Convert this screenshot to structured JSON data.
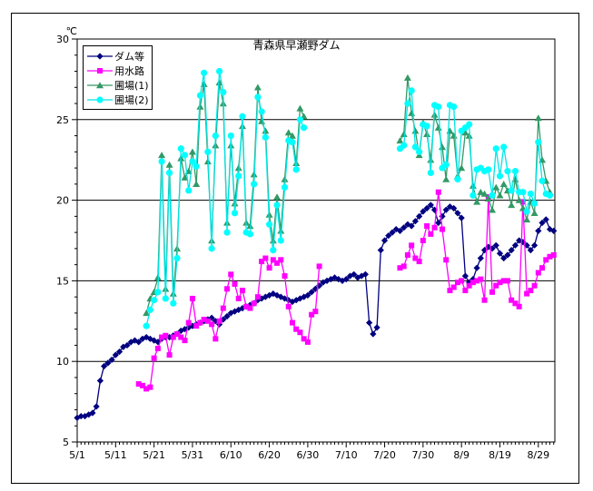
{
  "figure": {
    "title": "青森県早瀬野ダム",
    "unit_label": "℃"
  },
  "chart_data": {
    "type": "line",
    "title": "青森県早瀬野ダム",
    "ylabel": "℃",
    "ylim": [
      5,
      30
    ],
    "y_tick_interval": 5,
    "y_minor_tick_interval": 1,
    "y_tick_labels": [
      "5",
      "10",
      "15",
      "20",
      "25",
      "30"
    ],
    "grid": "horizontal-major",
    "legend_position": "top-left",
    "x_start_date": "5/1",
    "x_tick_days": [
      0,
      10,
      20,
      30,
      40,
      50,
      60,
      70,
      80,
      90,
      100,
      110,
      120
    ],
    "x_tick_labels": [
      "5/1",
      "5/11",
      "5/21",
      "5/31",
      "6/10",
      "6/20",
      "6/30",
      "7/10",
      "7/20",
      "7/30",
      "8/9",
      "8/19",
      "8/29"
    ],
    "series": [
      {
        "id": "dam",
        "name": "ダム等",
        "marker": "diamond",
        "color": "#000080",
        "line_color": "#000080",
        "segments": [
          {
            "start_day": 0,
            "values": [
              6.5,
              6.6,
              6.6,
              6.7,
              6.8,
              7.2,
              8.8,
              9.7,
              9.9,
              10.1,
              10.4,
              10.6,
              10.9,
              11.0,
              11.2,
              11.3,
              11.2,
              11.4,
              11.5,
              11.4,
              11.3,
              11.2,
              11.4,
              11.5,
              11.5,
              11.6,
              11.7,
              11.9,
              12.0,
              12.1,
              12.2,
              12.3,
              12.4,
              12.5,
              12.6,
              12.7,
              12.5,
              12.3,
              12.6,
              12.8,
              13.0,
              13.1,
              13.2,
              13.3,
              13.4,
              13.5,
              13.6,
              13.8,
              13.9,
              14.0,
              14.1,
              14.2,
              14.1,
              14.0,
              13.9,
              13.8,
              13.7,
              13.8,
              13.9,
              14.0,
              14.1,
              14.3,
              14.5,
              14.7,
              14.9,
              15.0,
              15.1,
              15.2,
              15.1,
              15.0,
              15.1,
              15.3,
              15.4,
              15.2,
              15.3,
              15.4,
              12.4,
              11.7,
              12.1,
              16.9,
              17.5,
              17.8,
              18.0,
              18.2,
              18.1,
              18.3,
              18.5,
              18.4,
              18.7,
              19.0,
              19.3,
              19.5,
              19.7,
              19.4,
              18.6,
              19.0,
              19.4,
              19.6,
              19.5,
              19.2,
              18.9,
              15.3,
              14.9,
              15.1,
              15.8,
              16.4,
              16.9,
              17.1,
              17.0,
              17.2,
              16.7,
              16.4,
              16.6,
              16.9,
              17.2,
              17.5,
              17.4,
              17.2,
              16.9,
              17.2,
              18.1,
              18.6,
              18.8,
              18.2,
              18.1
            ]
          }
        ]
      },
      {
        "id": "canal",
        "name": "用水路",
        "marker": "square",
        "color": "#FF00FF",
        "line_color": "#FF00FF",
        "segments": [
          {
            "start_day": 16,
            "values": [
              8.6,
              8.5,
              8.3,
              8.4,
              10.2,
              10.8,
              11.5,
              11.6,
              10.4,
              11.5,
              11.7,
              11.5,
              11.3,
              12.4,
              13.9,
              12.2,
              12.4,
              12.6,
              12.5,
              12.3,
              11.4,
              12.5,
              13.3,
              14.5,
              15.4,
              14.8,
              13.9,
              14.4,
              13.4,
              13.3,
              13.6,
              14.0,
              16.2,
              16.4,
              15.8,
              16.3,
              16.1,
              16.3,
              15.3,
              13.4,
              12.4,
              12.0,
              11.8,
              11.4,
              11.2,
              12.9,
              13.1,
              15.9
            ]
          },
          {
            "start_day": 84,
            "values": [
              15.8,
              15.9,
              16.6,
              17.2,
              16.4,
              16.2,
              17.5,
              18.4,
              17.9,
              18.3,
              20.5,
              18.2,
              16.3,
              14.4,
              14.6,
              14.9,
              15.0,
              14.4,
              14.7,
              14.9,
              15.0,
              15.1,
              13.8,
              20.2,
              14.3,
              14.7,
              14.9,
              15.0,
              15.0,
              13.8,
              13.6,
              13.4,
              19.9,
              14.2,
              14.4,
              14.7,
              15.5,
              15.8,
              16.3,
              16.5,
              16.6
            ]
          }
        ]
      },
      {
        "id": "field1",
        "name": "圃場(1)",
        "marker": "triangle",
        "color": "#339966",
        "line_color": "#339966",
        "segments": [
          {
            "start_day": 18,
            "values": [
              13.0,
              13.9,
              14.3,
              15.2,
              22.8,
              14.5,
              22.2,
              14.2,
              17.0,
              22.6,
              21.4,
              21.8,
              23.0,
              21.0,
              25.8,
              27.2,
              22.4,
              17.5,
              23.4,
              27.3,
              26.0,
              18.6,
              23.4,
              19.8,
              22.0,
              24.6,
              18.6,
              18.4,
              21.6,
              27.0,
              24.9,
              24.3,
              19.1,
              17.5,
              20.2,
              18.1,
              21.3,
              24.2,
              24.0,
              22.3,
              25.7,
              25.2
            ]
          },
          {
            "start_day": 84,
            "values": [
              23.7,
              24.1,
              27.6,
              25.4,
              24.3,
              22.8,
              24.8,
              24.1,
              22.5,
              25.3,
              24.5,
              23.3,
              21.3,
              24.3,
              24.0,
              21.5,
              22.0,
              24.2,
              24.0,
              20.9,
              19.9,
              20.5,
              20.4,
              20.1,
              19.4,
              20.8,
              20.3,
              21.0,
              20.6,
              19.7,
              21.3,
              20.0,
              19.5,
              18.8,
              19.9,
              19.2,
              25.1,
              22.5,
              21.2,
              20.5
            ]
          }
        ]
      },
      {
        "id": "field2",
        "name": "圃場(2)",
        "marker": "circle",
        "color": "#00FFFF",
        "line_color": "#00E5E5",
        "segments": [
          {
            "start_day": 18,
            "values": [
              12.2,
              13.2,
              13.8,
              14.3,
              22.4,
              13.9,
              21.7,
              13.6,
              16.4,
              23.2,
              22.8,
              20.6,
              22.4,
              22.1,
              26.5,
              27.9,
              23.0,
              17.0,
              24.0,
              28.0,
              26.7,
              18.0,
              24.0,
              19.2,
              21.5,
              25.2,
              18.0,
              17.9,
              21.0,
              26.4,
              25.5,
              23.9,
              18.5,
              16.9,
              19.7,
              17.5,
              20.8,
              23.7,
              23.6,
              21.9,
              25.0,
              24.5
            ]
          },
          {
            "start_day": 84,
            "values": [
              23.2,
              23.4,
              26.0,
              26.8,
              23.3,
              23.0,
              24.7,
              24.6,
              21.7,
              25.9,
              25.8,
              22.0,
              22.2,
              25.9,
              25.8,
              21.3,
              24.3,
              24.5,
              24.7,
              20.3,
              21.9,
              22.0,
              21.8,
              21.9,
              20.3,
              23.2,
              21.5,
              23.3,
              21.8,
              20.6,
              21.8,
              20.5,
              20.5,
              19.3,
              20.4,
              19.8,
              23.6,
              21.2,
              20.4,
              20.3
            ]
          }
        ]
      }
    ]
  }
}
